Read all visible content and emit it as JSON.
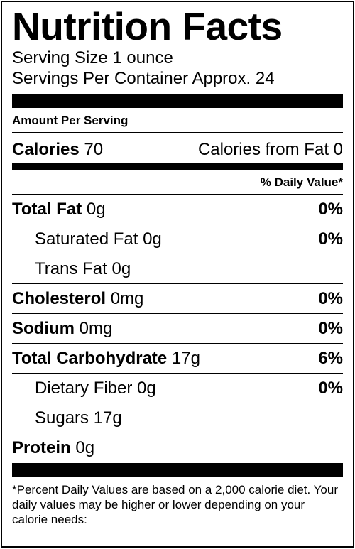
{
  "label": {
    "title": "Nutrition Facts",
    "serving_size": "Serving Size 1 ounce",
    "servings_per_container": "Servings Per Container Approx. 24",
    "amount_per_serving": "Amount Per Serving",
    "calories_label": "Calories",
    "calories_value": " 70",
    "calories_from_fat": "Calories from Fat 0",
    "daily_value_header": "% Daily Value*",
    "nutrients": [
      {
        "name": "Total Fat",
        "amount": " 0g",
        "dv": "0%"
      },
      {
        "name": "Saturated Fat 0g",
        "amount": "",
        "dv": "0%"
      },
      {
        "name": "Trans Fat 0g",
        "amount": "",
        "dv": ""
      },
      {
        "name": "Cholesterol",
        "amount": " 0mg",
        "dv": "0%"
      },
      {
        "name": "Sodium",
        "amount": " 0mg",
        "dv": "0%"
      },
      {
        "name": "Total Carbohydrate",
        "amount": " 17g",
        "dv": "6%"
      },
      {
        "name": "Dietary Fiber 0g",
        "amount": "",
        "dv": "0%"
      },
      {
        "name": "Sugars 17g",
        "amount": "",
        "dv": ""
      },
      {
        "name": "Protein",
        "amount": " 0g",
        "dv": ""
      }
    ],
    "footnote": "*Percent Daily Values are based on a 2,000 calorie diet. Your daily values may be higher or lower depending on your calorie needs:"
  }
}
